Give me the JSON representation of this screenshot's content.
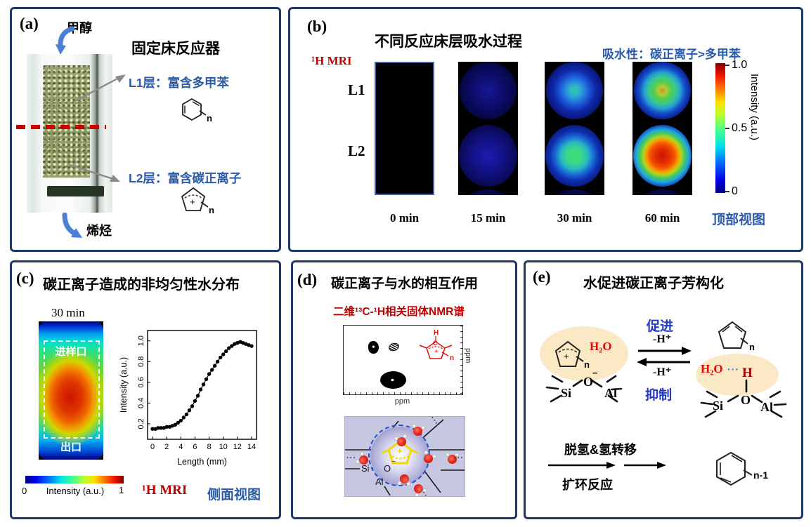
{
  "colors": {
    "panel_border": "#1f3864",
    "steel_blue": "#2b5aa7",
    "bright_blue": "#2238c8",
    "dark_red": "#c00000",
    "h2o_red": "#ee0000",
    "h_bridge_red": "#a00000",
    "arrow_blue": "#4a7fd4",
    "arrow_gray": "#8a8a8a",
    "dashed_line_red": "#cc0000",
    "cartoon_bg": "#c6c7e1",
    "ellipse_orange": "#fbe8c4",
    "struct_yellow": "#f0d800",
    "nmr_red": "#e01010"
  },
  "panel_a": {
    "label": "(a)",
    "title": "固定床反应器",
    "inlet": "甲醇",
    "outlet": "烯烃",
    "l1": "L1层：富含多甲苯",
    "l2": "L2层：富含碳正离子",
    "benzene_n": "n",
    "cation_plus": "+",
    "cation_n": "n"
  },
  "panel_b": {
    "label": "(b)",
    "title": "不同反应床层吸水过程",
    "conclusion": "吸水性：碳正离子>多甲苯",
    "method": "¹H MRI",
    "l1": "L1",
    "l2": "L2",
    "times": [
      "0 min",
      "15 min",
      "30 min",
      "60 min"
    ],
    "view": "顶部视图",
    "cbar_max": "1.0",
    "cbar_mid": "0.5",
    "cbar_min": "0",
    "cbar_label": "Intensity (a.u.)"
  },
  "panel_c": {
    "label": "(c)",
    "title": "碳正离子造成的非均匀性水分布",
    "time": "30 min",
    "inlet": "进样口",
    "outlet": "出口",
    "cbar_min": "0",
    "cbar_label": "Intensity (a.u.)",
    "cbar_max": "1",
    "method": "¹H MRI",
    "view": "侧面视图"
  },
  "chart_data": {
    "type": "scatter",
    "title": "",
    "xlabel": "Length (mm)",
    "ylabel": "Intensity (a.u.)",
    "xlim": [
      -0.7,
      14.7
    ],
    "ylim": [
      0.05,
      1.1
    ],
    "xticks": [
      0,
      2,
      4,
      6,
      8,
      10,
      12,
      14
    ],
    "yticks": [
      0.2,
      0.4,
      0.6,
      0.8,
      1.0
    ],
    "grid": false,
    "legend": "none",
    "marker": "filled-circle",
    "line": true,
    "x": [
      0,
      0.4,
      0.8,
      1.2,
      1.6,
      2,
      2.4,
      2.8,
      3.2,
      3.6,
      4,
      4.4,
      4.8,
      5.2,
      5.6,
      6,
      6.4,
      6.8,
      7.2,
      7.6,
      8,
      8.4,
      8.8,
      9.2,
      9.6,
      10,
      10.4,
      10.8,
      11.2,
      11.6,
      12,
      12.4,
      12.8,
      13.2,
      13.6,
      14
    ],
    "y": [
      0.15,
      0.15,
      0.16,
      0.16,
      0.16,
      0.17,
      0.17,
      0.18,
      0.19,
      0.21,
      0.23,
      0.26,
      0.29,
      0.33,
      0.37,
      0.42,
      0.47,
      0.53,
      0.58,
      0.63,
      0.68,
      0.72,
      0.76,
      0.8,
      0.84,
      0.87,
      0.9,
      0.93,
      0.95,
      0.97,
      0.98,
      0.99,
      0.98,
      0.97,
      0.96,
      0.95
    ]
  },
  "panel_d": {
    "label": "(d)",
    "title": "碳正离子与水的相互作用",
    "subtitle": "二维¹³C-¹H相关固体NMR谱",
    "ppm_x": "ppm",
    "ppm_y": "ppm",
    "struct_h": "H",
    "struct_c": "C",
    "struct_plus": "+",
    "struct_n": "n",
    "si": "Si",
    "o": "O",
    "o_charge": "−",
    "al": "Al",
    "cation_plus": "+",
    "dots": "···"
  },
  "panel_e": {
    "label": "(e)",
    "title": "水促进碳正离子芳构化",
    "promote": "促进",
    "inhibit": "抑制",
    "deprot_top": "-H⁺",
    "deprot_bottom": "-H⁺",
    "h2o_left": "H₂O",
    "cation_plus": "+",
    "cation_n": "n",
    "si_left": "Si",
    "o_left": "O",
    "o_left_charge": "−",
    "al_left": "Al",
    "diene_n": "n",
    "h2o_right": "H₂O",
    "hbond_dots": "···",
    "h_bridge": "H",
    "o_right": "O",
    "si_right": "Si",
    "al_right": "Al",
    "step_top": "脱氢&氢转移",
    "step_bottom": "扩环反应",
    "product_n": "n-1"
  }
}
